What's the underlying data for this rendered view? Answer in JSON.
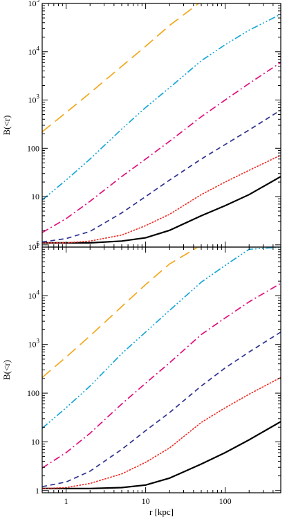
{
  "chart_data": [
    {
      "type": "line",
      "title": "",
      "xlabel": "r [kpc]",
      "ylabel": "B(<r)",
      "xscale": "log",
      "yscale": "log",
      "xlim": [
        0.5,
        500
      ],
      "ylim": [
        0.9,
        100000
      ],
      "x_ticks": [
        "1",
        "10",
        "100"
      ],
      "x_tick_labels_shown": false,
      "y_ticks": [
        "1",
        "10",
        "100",
        "10^3",
        "10^4",
        "10^5"
      ],
      "grid": false,
      "legend": "none",
      "series": [
        {
          "color": "#000000",
          "style": "solid",
          "x": [
            0.5,
            1,
            2,
            5,
            10,
            20,
            50,
            100,
            200,
            500
          ],
          "values": [
            1.1,
            1.1,
            1.1,
            1.2,
            1.4,
            2.0,
            4.0,
            6.5,
            11,
            26
          ]
        },
        {
          "color": "#e8312a",
          "style": "dotted",
          "x": [
            0.5,
            1,
            2,
            5,
            10,
            20,
            50,
            100,
            200,
            500
          ],
          "values": [
            1.1,
            1.1,
            1.2,
            1.6,
            2.5,
            4.3,
            11,
            20,
            35,
            72
          ]
        },
        {
          "color": "#2e3192",
          "style": "dashed",
          "x": [
            0.5,
            1,
            2,
            5,
            10,
            20,
            50,
            100,
            200,
            500
          ],
          "values": [
            1.15,
            1.35,
            1.9,
            4.6,
            10,
            22,
            60,
            120,
            240,
            620
          ]
        },
        {
          "color": "#e0107f",
          "style": "dash-dot",
          "x": [
            0.5,
            1,
            2,
            5,
            10,
            20,
            50,
            100,
            200,
            500
          ],
          "values": [
            1.8,
            3.5,
            8,
            26,
            60,
            140,
            450,
            1000,
            2200,
            6000
          ]
        },
        {
          "color": "#1aa7d8",
          "style": "dash-dot-dot-dot",
          "x": [
            0.5,
            1,
            2,
            5,
            10,
            20,
            50,
            100,
            200,
            500
          ],
          "values": [
            8.5,
            22,
            60,
            250,
            700,
            1800,
            6500,
            14000,
            28000,
            60000
          ]
        },
        {
          "color": "#f2a81d",
          "style": "long-dash",
          "x": [
            0.5,
            1,
            2,
            5,
            10,
            20,
            50
          ],
          "values": [
            220,
            550,
            1400,
            5000,
            13000,
            35000,
            110000
          ]
        }
      ]
    },
    {
      "type": "line",
      "title": "",
      "xlabel": "r [kpc]",
      "ylabel": "B(<r)",
      "xscale": "log",
      "yscale": "log",
      "xlim": [
        0.5,
        500
      ],
      "ylim": [
        0.9,
        100000
      ],
      "x_ticks": [
        "1",
        "10",
        "100"
      ],
      "y_ticks": [
        "1",
        "10",
        "100",
        "10^3",
        "10^4",
        "10^5"
      ],
      "grid": false,
      "legend": "none",
      "series": [
        {
          "color": "#000000",
          "style": "solid",
          "x": [
            0.5,
            1,
            2,
            5,
            10,
            20,
            50,
            100,
            200,
            500
          ],
          "values": [
            1.1,
            1.1,
            1.1,
            1.15,
            1.3,
            1.8,
            3.5,
            6,
            11,
            26
          ]
        },
        {
          "color": "#e8312a",
          "style": "dotted",
          "x": [
            0.5,
            1,
            2,
            5,
            10,
            20,
            50,
            100,
            200,
            500
          ],
          "values": [
            1.1,
            1.15,
            1.4,
            2.2,
            3.8,
            7.5,
            25,
            50,
            95,
            210
          ]
        },
        {
          "color": "#2e3192",
          "style": "dashed",
          "x": [
            0.5,
            1,
            2,
            5,
            10,
            20,
            50,
            100,
            200,
            500
          ],
          "values": [
            1.2,
            1.5,
            2.5,
            7,
            17,
            40,
            140,
            330,
            700,
            1800
          ]
        },
        {
          "color": "#e0107f",
          "style": "dash-dot",
          "x": [
            0.5,
            1,
            2,
            5,
            10,
            20,
            50,
            100,
            200,
            500
          ],
          "values": [
            2.9,
            6,
            15,
            60,
            160,
            420,
            1600,
            3500,
            7500,
            18000
          ]
        },
        {
          "color": "#1aa7d8",
          "style": "dash-dot-dot-dot",
          "x": [
            0.5,
            1,
            2,
            5,
            10,
            20,
            50,
            100,
            200,
            500
          ],
          "values": [
            19,
            50,
            140,
            650,
            1800,
            5000,
            19000,
            42000,
            90000,
            100000
          ]
        },
        {
          "color": "#f2a81d",
          "style": "long-dash",
          "x": [
            0.5,
            1,
            2,
            5,
            10,
            20,
            50
          ],
          "values": [
            210,
            550,
            1500,
            6000,
            17000,
            45000,
            110000
          ]
        }
      ]
    }
  ]
}
